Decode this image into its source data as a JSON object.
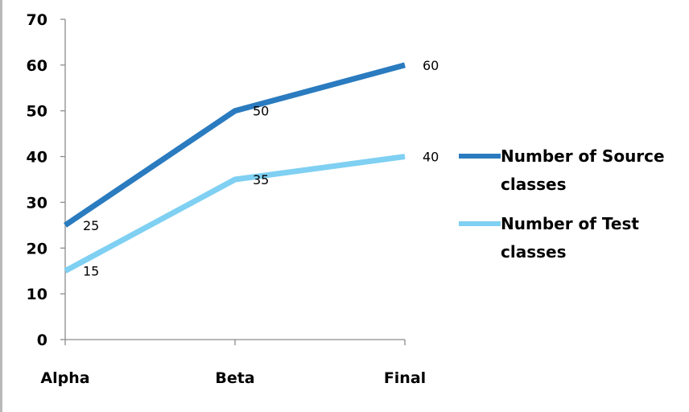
{
  "chart_data": {
    "type": "line",
    "categories": [
      "Alpha",
      "Beta",
      "Final"
    ],
    "ylim": [
      0,
      70
    ],
    "yticks": [
      0,
      10,
      20,
      30,
      40,
      50,
      60,
      70
    ],
    "grid": false,
    "legend_position": "right",
    "series": [
      {
        "name": "Number of Source classes",
        "name_lines": [
          "Number of Source",
          "classes"
        ],
        "values": [
          25,
          50,
          60
        ],
        "color": "#2a7bbf"
      },
      {
        "name": "Number of Test classes",
        "name_lines": [
          "Number of Test",
          "classes"
        ],
        "values": [
          15,
          35,
          40
        ],
        "color": "#7fd0f2"
      }
    ]
  }
}
